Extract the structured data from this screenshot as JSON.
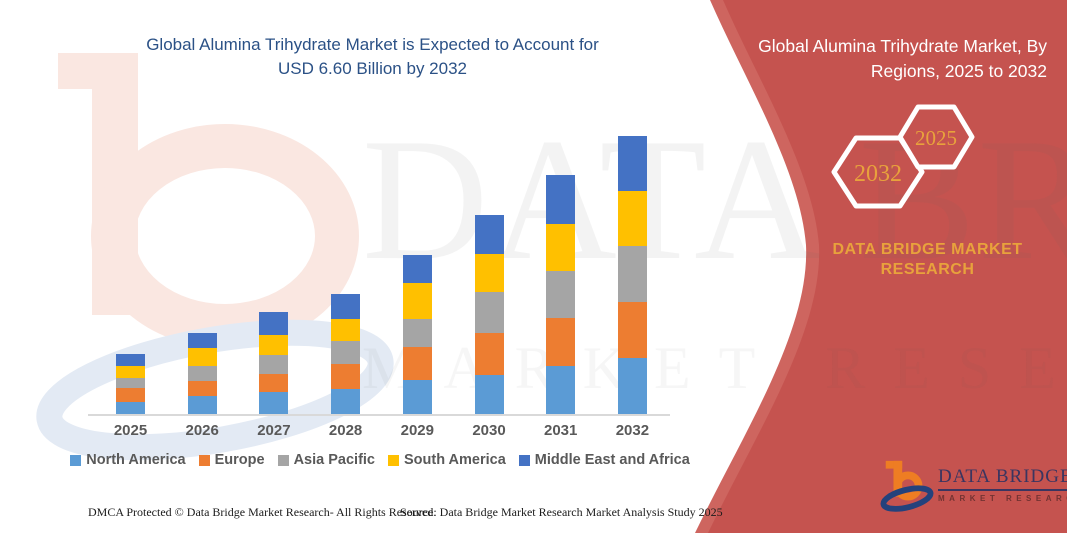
{
  "title": {
    "line1": "Global Alumina Trihydrate Market is Expected to Account for",
    "line2": "USD 6.60 Billion by 2032"
  },
  "chart_data": {
    "type": "bar",
    "stacked": true,
    "title": "Global Alumina Trihydrate Market is Expected to Account for USD 6.60 Billion by 2032",
    "unit": "USD Billion",
    "categories": [
      "2025",
      "2026",
      "2027",
      "2028",
      "2029",
      "2030",
      "2031",
      "2032"
    ],
    "series": [
      {
        "name": "North America",
        "color": "#5B9BD5",
        "values": [
          0.29,
          0.42,
          0.52,
          0.59,
          0.82,
          0.93,
          1.13,
          1.32
        ]
      },
      {
        "name": "Europe",
        "color": "#ED7D31",
        "values": [
          0.32,
          0.37,
          0.42,
          0.59,
          0.77,
          0.99,
          1.16,
          1.35
        ]
      },
      {
        "name": "Asia Pacific",
        "color": "#A5A5A5",
        "values": [
          0.24,
          0.34,
          0.47,
          0.55,
          0.67,
          0.97,
          1.11,
          1.31
        ]
      },
      {
        "name": "South America",
        "color": "#FFC000",
        "values": [
          0.3,
          0.43,
          0.46,
          0.53,
          0.86,
          0.91,
          1.11,
          1.32
        ]
      },
      {
        "name": "Middle East and Africa",
        "color": "#4472C4",
        "values": [
          0.28,
          0.36,
          0.55,
          0.6,
          0.67,
          0.93,
          1.16,
          1.3
        ]
      }
    ],
    "totals": [
      1.43,
      1.92,
      2.42,
      2.86,
      3.79,
      4.73,
      5.67,
      6.6
    ],
    "xlabel": "",
    "ylabel": "",
    "ylim": [
      0,
      6.8
    ],
    "gridlines": false,
    "y_axis_visible": false,
    "legend_position": "bottom"
  },
  "banner": {
    "header_line1": "Global Alumina Trihydrate Market, By",
    "header_line2": "Regions, 2025 to 2032",
    "hex_large_label": "2032",
    "hex_small_label": "2025",
    "brand_line1": "DATA BRIDGE MARKET",
    "brand_line2": "RESEARCH"
  },
  "logo": {
    "title": "DATA BRIDGE",
    "subtitle": "MARKET RESEARCH"
  },
  "watermark": {
    "text_line1": "DATA BRIDGE",
    "text_line2": "MARKET RESEARCH"
  },
  "footer": {
    "left": "DMCA Protected © Data Bridge Market Research-  All Rights Reserved.",
    "source": "Source: Data Bridge Market Research  Market Analysis Study 2025"
  },
  "colors": {
    "title_blue": "#2B5186",
    "banner_red_main": "#C5534F",
    "banner_red_light_edge": "#CE655F",
    "gold": "#E8A23C",
    "axis_text": "#595959",
    "logo_orange": "#EE7D23",
    "logo_navy": "#24427C",
    "logo_navy_text": "#3A3560",
    "watermark_salmon": "#FAE7E1",
    "watermark_blue": "#E3EAF4"
  }
}
